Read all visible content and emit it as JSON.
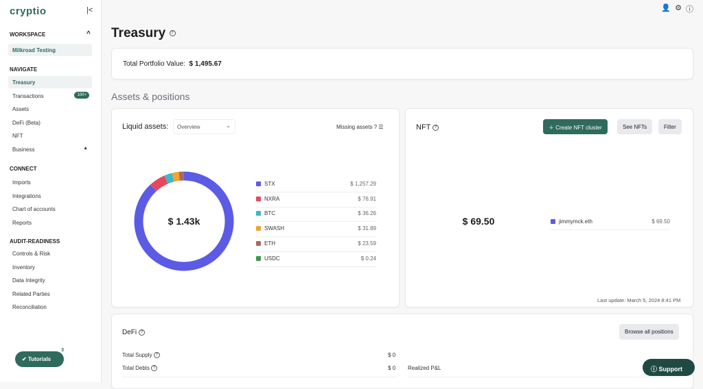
{
  "app": {
    "logo": "cryptio"
  },
  "sidebar": {
    "workspace_label": "WORKSPACE",
    "workspace": "Milkroad Testing",
    "navigate_label": "NAVIGATE",
    "navigate": [
      {
        "label": "Treasury"
      },
      {
        "label": "Transactions",
        "badge": "100+"
      },
      {
        "label": "Assets"
      },
      {
        "label": "DeFi (Beta)"
      },
      {
        "label": "NFT"
      },
      {
        "label": "Business"
      }
    ],
    "connect_label": "CONNECT",
    "connect": [
      {
        "label": "Imports"
      },
      {
        "label": "Integrations"
      },
      {
        "label": "Chart of accounts"
      },
      {
        "label": "Reports"
      }
    ],
    "audit_label": "AUDIT-READINESS",
    "audit": [
      {
        "label": "Controls & Risk"
      },
      {
        "label": "Inventory"
      },
      {
        "label": "Data Integrity"
      },
      {
        "label": "Related Parties"
      },
      {
        "label": "Reconciliation"
      }
    ],
    "tutorials": "Tutorials",
    "tutorials_count": "3"
  },
  "page": {
    "title": "Treasury",
    "portfolio_label": "Total Portfolio Value:",
    "portfolio_value": "$ 1,495.67",
    "section_title": "Assets & positions"
  },
  "liquid": {
    "label": "Liquid assets:",
    "select": "Overview",
    "missing": "Missing assets ?",
    "center": "$ 1.43k",
    "assets": [
      {
        "name": "STX",
        "value": "$ 1,257.29",
        "amount": 1257.29,
        "color": "#5b5be6"
      },
      {
        "name": "NXRA",
        "value": "$ 76.91",
        "amount": 76.91,
        "color": "#e5485f"
      },
      {
        "name": "BTC",
        "value": "$ 36.26",
        "amount": 36.26,
        "color": "#3bb8c9"
      },
      {
        "name": "SWASH",
        "value": "$ 31.89",
        "amount": 31.89,
        "color": "#f0a531"
      },
      {
        "name": "ETH",
        "value": "$ 23.59",
        "amount": 23.59,
        "color": "#a86a5c"
      },
      {
        "name": "USDC",
        "value": "$ 0.24",
        "amount": 0.24,
        "color": "#3a9a4a"
      }
    ]
  },
  "nft": {
    "title": "NFT",
    "create": "Create NFT cluster",
    "see": "See NFTs",
    "filter": "Filter",
    "center": "$ 69.50",
    "items": [
      {
        "name": "jimmymck.eth",
        "value": "$ 69.50",
        "color": "#5b5be6"
      }
    ],
    "last_update": "Last update: March 5, 2024 8:41 PM"
  },
  "defi": {
    "title": "DeFi",
    "browse": "Browse all positions",
    "supply_label": "Total Supply",
    "supply": "$ 0",
    "debts_label": "Total Debts",
    "debts": "$ 0",
    "pnl_label": "Realized P&L"
  },
  "support": "Support"
}
